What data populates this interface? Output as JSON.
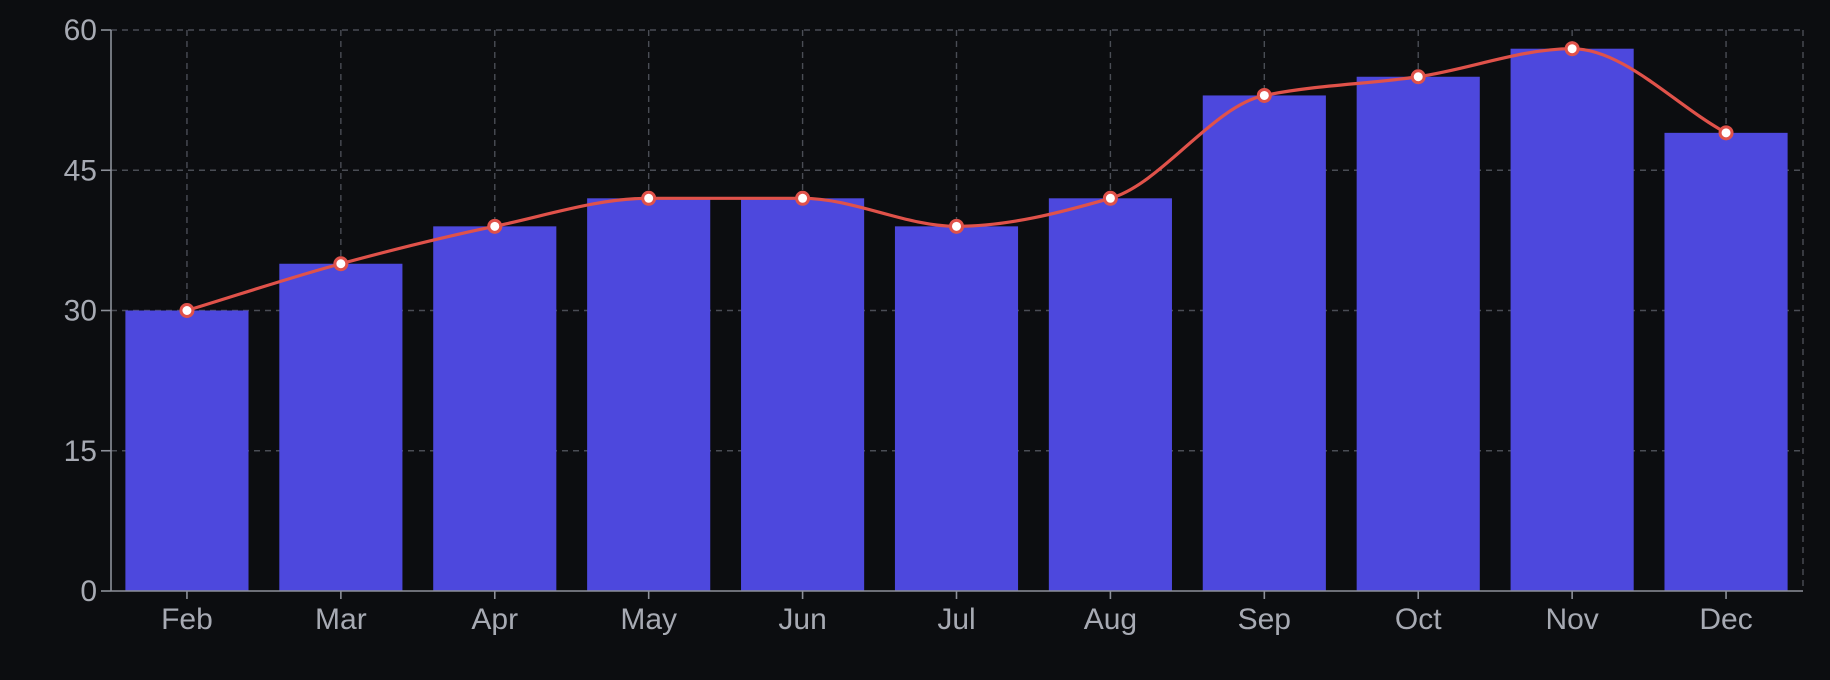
{
  "chart_data": {
    "type": "bar",
    "categories": [
      "Feb",
      "Mar",
      "Apr",
      "May",
      "Jun",
      "Jul",
      "Aug",
      "Sep",
      "Oct",
      "Nov",
      "Dec"
    ],
    "series": [
      {
        "type": "bar",
        "values": [
          30,
          35,
          39,
          42,
          42,
          39,
          42,
          53,
          55,
          58,
          49
        ],
        "color": "#4d48dd"
      },
      {
        "type": "line",
        "smooth": true,
        "values": [
          30,
          35,
          39,
          42,
          42,
          39,
          42,
          53,
          55,
          58,
          49
        ],
        "color": "#e0524a",
        "marker_fill": "#ffffff"
      }
    ],
    "title": "",
    "xlabel": "",
    "ylabel": "",
    "ylim": [
      0,
      60
    ],
    "yticks": [
      0,
      15,
      30,
      45,
      60
    ],
    "grid": true,
    "legend": "none"
  },
  "colors": {
    "background": "#0c0d10",
    "grid": "#4a4d55",
    "axis": "#8d9099",
    "tick_text": "#a7aab3"
  }
}
